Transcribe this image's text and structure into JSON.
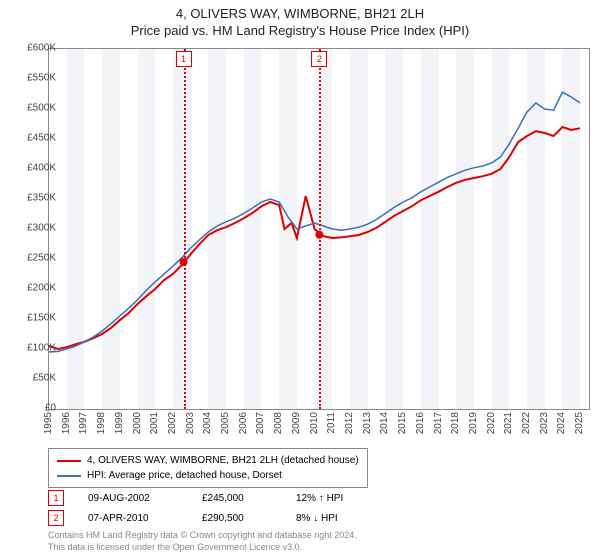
{
  "title_line1": "4, OLIVERS WAY, WIMBORNE, BH21 2LH",
  "title_line2": "Price paid vs. HM Land Registry's House Price Index (HPI)",
  "chart": {
    "type": "line",
    "background_color": "#ffffff",
    "plot_border_color": "#888888",
    "band_color": "#f2f4f8",
    "ylim": [
      0,
      600000
    ],
    "ytick_step": 50000,
    "yticks": [
      "£0",
      "£50K",
      "£100K",
      "£150K",
      "£200K",
      "£250K",
      "£300K",
      "£350K",
      "£400K",
      "£450K",
      "£500K",
      "£550K",
      "£600K"
    ],
    "xlim": [
      1995,
      2025.5
    ],
    "xticks": [
      "1995",
      "1996",
      "1997",
      "1998",
      "1999",
      "2000",
      "2001",
      "2002",
      "2003",
      "2004",
      "2005",
      "2006",
      "2007",
      "2008",
      "2009",
      "2010",
      "2011",
      "2012",
      "2013",
      "2014",
      "2015",
      "2016",
      "2017",
      "2018",
      "2019",
      "2020",
      "2021",
      "2022",
      "2023",
      "2024",
      "2025"
    ],
    "series": [
      {
        "name": "price_paid",
        "color": "#e00000",
        "width": 2,
        "points": [
          [
            1995,
            105000
          ],
          [
            1995.5,
            100000
          ],
          [
            1996,
            103000
          ],
          [
            1996.5,
            108000
          ],
          [
            1997,
            112000
          ],
          [
            1997.5,
            118000
          ],
          [
            1998,
            125000
          ],
          [
            1998.5,
            135000
          ],
          [
            1999,
            148000
          ],
          [
            1999.5,
            160000
          ],
          [
            2000,
            175000
          ],
          [
            2000.5,
            188000
          ],
          [
            2001,
            200000
          ],
          [
            2001.5,
            215000
          ],
          [
            2002,
            225000
          ],
          [
            2002.5,
            240000
          ],
          [
            2003,
            258000
          ],
          [
            2003.5,
            275000
          ],
          [
            2004,
            290000
          ],
          [
            2004.5,
            298000
          ],
          [
            2005,
            303000
          ],
          [
            2005.5,
            310000
          ],
          [
            2006,
            318000
          ],
          [
            2006.5,
            327000
          ],
          [
            2007,
            338000
          ],
          [
            2007.5,
            345000
          ],
          [
            2008,
            340000
          ],
          [
            2008.3,
            300000
          ],
          [
            2008.7,
            310000
          ],
          [
            2009,
            285000
          ],
          [
            2009.5,
            355000
          ],
          [
            2010,
            300000
          ],
          [
            2010.5,
            288000
          ],
          [
            2011,
            285000
          ],
          [
            2011.5,
            286000
          ],
          [
            2012,
            288000
          ],
          [
            2012.5,
            290000
          ],
          [
            2013,
            295000
          ],
          [
            2013.5,
            302000
          ],
          [
            2014,
            312000
          ],
          [
            2014.5,
            322000
          ],
          [
            2015,
            330000
          ],
          [
            2015.5,
            338000
          ],
          [
            2016,
            348000
          ],
          [
            2016.5,
            355000
          ],
          [
            2017,
            362000
          ],
          [
            2017.5,
            370000
          ],
          [
            2018,
            377000
          ],
          [
            2018.5,
            382000
          ],
          [
            2019,
            385000
          ],
          [
            2019.5,
            388000
          ],
          [
            2020,
            392000
          ],
          [
            2020.5,
            400000
          ],
          [
            2021,
            420000
          ],
          [
            2021.5,
            445000
          ],
          [
            2022,
            455000
          ],
          [
            2022.5,
            463000
          ],
          [
            2023,
            460000
          ],
          [
            2023.5,
            455000
          ],
          [
            2024,
            470000
          ],
          [
            2024.5,
            465000
          ],
          [
            2025,
            468000
          ]
        ]
      },
      {
        "name": "hpi",
        "color": "#3b6fb6",
        "width": 1.5,
        "points": [
          [
            1995,
            95000
          ],
          [
            1995.5,
            96000
          ],
          [
            1996,
            100000
          ],
          [
            1996.5,
            105000
          ],
          [
            1997,
            112000
          ],
          [
            1997.5,
            120000
          ],
          [
            1998,
            130000
          ],
          [
            1998.5,
            142000
          ],
          [
            1999,
            155000
          ],
          [
            1999.5,
            168000
          ],
          [
            2000,
            182000
          ],
          [
            2000.5,
            198000
          ],
          [
            2001,
            212000
          ],
          [
            2001.5,
            225000
          ],
          [
            2002,
            238000
          ],
          [
            2002.5,
            252000
          ],
          [
            2003,
            268000
          ],
          [
            2003.5,
            282000
          ],
          [
            2004,
            295000
          ],
          [
            2004.5,
            305000
          ],
          [
            2005,
            312000
          ],
          [
            2005.5,
            318000
          ],
          [
            2006,
            326000
          ],
          [
            2006.5,
            335000
          ],
          [
            2007,
            345000
          ],
          [
            2007.5,
            350000
          ],
          [
            2008,
            345000
          ],
          [
            2008.5,
            320000
          ],
          [
            2009,
            300000
          ],
          [
            2009.5,
            305000
          ],
          [
            2010,
            310000
          ],
          [
            2010.5,
            305000
          ],
          [
            2011,
            300000
          ],
          [
            2011.5,
            298000
          ],
          [
            2012,
            300000
          ],
          [
            2012.5,
            303000
          ],
          [
            2013,
            308000
          ],
          [
            2013.5,
            316000
          ],
          [
            2014,
            326000
          ],
          [
            2014.5,
            336000
          ],
          [
            2015,
            345000
          ],
          [
            2015.5,
            352000
          ],
          [
            2016,
            362000
          ],
          [
            2016.5,
            370000
          ],
          [
            2017,
            378000
          ],
          [
            2017.5,
            386000
          ],
          [
            2018,
            392000
          ],
          [
            2018.5,
            398000
          ],
          [
            2019,
            402000
          ],
          [
            2019.5,
            405000
          ],
          [
            2020,
            410000
          ],
          [
            2020.5,
            420000
          ],
          [
            2021,
            442000
          ],
          [
            2021.5,
            468000
          ],
          [
            2022,
            495000
          ],
          [
            2022.5,
            510000
          ],
          [
            2023,
            500000
          ],
          [
            2023.5,
            498000
          ],
          [
            2024,
            528000
          ],
          [
            2024.5,
            520000
          ],
          [
            2025,
            510000
          ]
        ]
      }
    ],
    "markers": [
      {
        "n": "1",
        "x": 2002.6,
        "y": 245000,
        "color": "#e00000"
      },
      {
        "n": "2",
        "x": 2010.27,
        "y": 290500,
        "color": "#e00000"
      }
    ]
  },
  "legend": {
    "items": [
      {
        "color": "#e00000",
        "label": "4, OLIVERS WAY, WIMBORNE, BH21 2LH (detached house)"
      },
      {
        "color": "#3b6fb6",
        "label": "HPI: Average price, detached house, Dorset"
      }
    ]
  },
  "marker_rows": [
    {
      "n": "1",
      "color": "#e00000",
      "date": "09-AUG-2002",
      "price": "£245,000",
      "delta": "12% ↑ HPI"
    },
    {
      "n": "2",
      "color": "#e00000",
      "date": "07-APR-2010",
      "price": "£290,500",
      "delta": "8% ↓ HPI"
    }
  ],
  "footer_line1": "Contains HM Land Registry data © Crown copyright and database right 2024.",
  "footer_line2": "This data is licensed under the Open Government Licence v3.0."
}
